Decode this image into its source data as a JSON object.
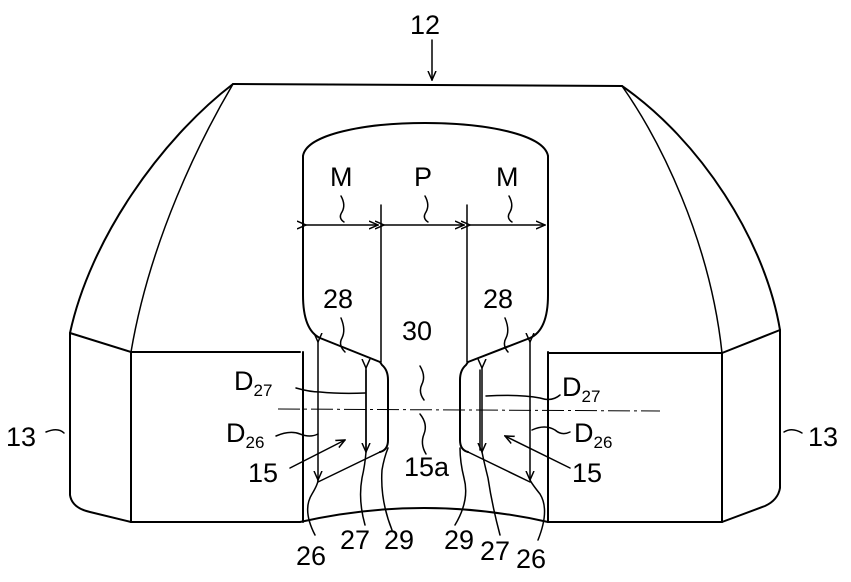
{
  "labels": {
    "ref_12": "12",
    "ref_13_left": "13",
    "ref_13_right": "13",
    "M_left": "M",
    "P": "P",
    "M_right": "M",
    "ref_28_left": "28",
    "ref_28_right": "28",
    "ref_30": "30",
    "D27_left_main": "D",
    "D27_left_sub": "27",
    "D27_right_main": "D",
    "D27_right_sub": "27",
    "D26_left_main": "D",
    "D26_left_sub": "26",
    "D26_right_main": "D",
    "D26_right_sub": "26",
    "ref_15_left": "15",
    "ref_15_right": "15",
    "ref_15a": "15a",
    "ref_26_left": "26",
    "ref_27_left": "27",
    "ref_29_left": "29",
    "ref_29_right": "29",
    "ref_27_right": "27",
    "ref_26_right": "26"
  }
}
